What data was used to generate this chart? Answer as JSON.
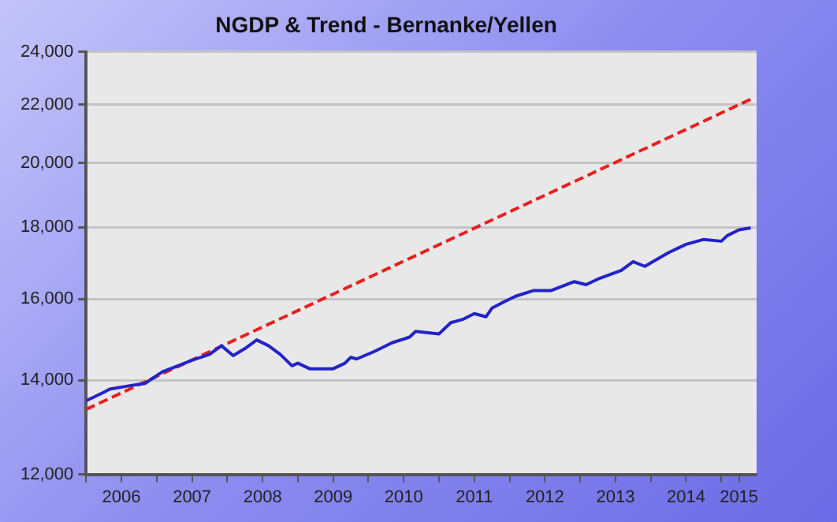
{
  "chart_data": {
    "type": "line",
    "title": "NGDP & Trend - Bernanke/Yellen",
    "log": true,
    "grid": "y",
    "legend": false,
    "marker": "none",
    "xlim": [
      "2006-01",
      "2015-07"
    ],
    "xticks": [
      {
        "value": "2006-01",
        "label": null
      },
      {
        "value": "2006-07",
        "label": "2006"
      },
      {
        "value": "2007-01",
        "label": null
      },
      {
        "value": "2007-07",
        "label": "2007"
      },
      {
        "value": "2008-01",
        "label": null
      },
      {
        "value": "2008-07",
        "label": "2008"
      },
      {
        "value": "2009-01",
        "label": null
      },
      {
        "value": "2009-07",
        "label": "2009"
      },
      {
        "value": "2010-01",
        "label": null
      },
      {
        "value": "2010-07",
        "label": "2010"
      },
      {
        "value": "2011-01",
        "label": null
      },
      {
        "value": "2011-07",
        "label": "2011"
      },
      {
        "value": "2012-01",
        "label": null
      },
      {
        "value": "2012-07",
        "label": "2012"
      },
      {
        "value": "2013-01",
        "label": null
      },
      {
        "value": "2013-07",
        "label": "2013"
      },
      {
        "value": "2014-01",
        "label": null
      },
      {
        "value": "2014-07",
        "label": "2014"
      },
      {
        "value": "2015-01",
        "label": null
      },
      {
        "value": "2015-04",
        "label": "2015"
      }
    ],
    "ylim": [
      12000,
      24000
    ],
    "yticks": [
      {
        "value": 12000,
        "label": "12,000"
      },
      {
        "value": 14000,
        "label": "14,000"
      },
      {
        "value": 16000,
        "label": "16,000"
      },
      {
        "value": 18000,
        "label": "18,000"
      },
      {
        "value": 20000,
        "label": "20,000"
      },
      {
        "value": 22000,
        "label": "22,000"
      },
      {
        "value": 24000,
        "label": "24,000"
      }
    ],
    "series": [
      {
        "color": "#2323c8",
        "line_style": "solid",
        "x": [
          "2006-01",
          "2006-04",
          "2006-05",
          "2006-08",
          "2006-11",
          "2007-02",
          "2007-05",
          "2007-07",
          "2007-10",
          "2007-12",
          "2008-02",
          "2008-04",
          "2008-06",
          "2008-08",
          "2008-10",
          "2008-12",
          "2009-01",
          "2009-03",
          "2009-07",
          "2009-09",
          "2009-10",
          "2009-11",
          "2010-02",
          "2010-05",
          "2010-08",
          "2010-09",
          "2011-01",
          "2011-03",
          "2011-05",
          "2011-07",
          "2011-09",
          "2011-10",
          "2011-12",
          "2012-02",
          "2012-05",
          "2012-08",
          "2012-12",
          "2013-02",
          "2013-04",
          "2013-08",
          "2013-10",
          "2013-12",
          "2014-04",
          "2014-07",
          "2014-10",
          "2015-01",
          "2015-02",
          "2015-04",
          "2015-06"
        ],
        "values": [
          13540,
          13730,
          13800,
          13870,
          13930,
          14200,
          14360,
          14470,
          14610,
          14820,
          14580,
          14750,
          14960,
          14820,
          14610,
          14340,
          14400,
          14270,
          14270,
          14400,
          14540,
          14500,
          14680,
          14890,
          15030,
          15170,
          15110,
          15390,
          15470,
          15620,
          15540,
          15760,
          15920,
          16070,
          16220,
          16220,
          16460,
          16380,
          16530,
          16770,
          17010,
          16880,
          17260,
          17500,
          17640,
          17590,
          17750,
          17920,
          17980
        ]
      },
      {
        "color": "#e82020",
        "line_style": "dashed",
        "x": [
          "2006-01",
          "2015-06"
        ],
        "values": [
          13350,
          22200
        ]
      }
    ]
  }
}
